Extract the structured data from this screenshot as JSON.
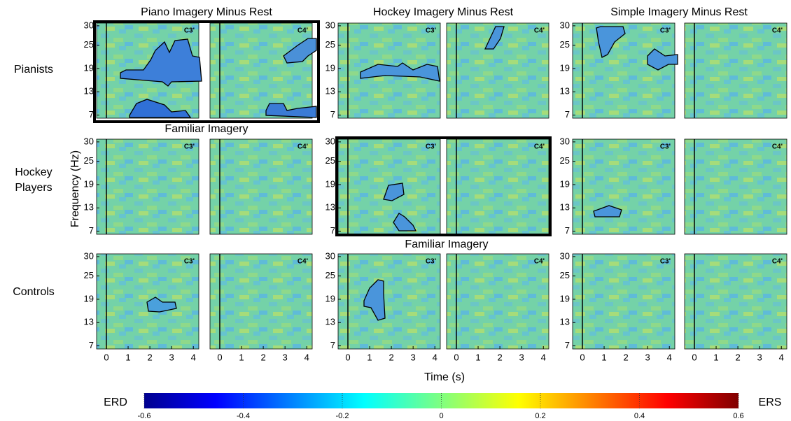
{
  "chart_data": {
    "type": "tf-grid",
    "columns": [
      "Piano Imagery Minus Rest",
      "Hockey Imagery Minus Rest",
      "Simple Imagery Minus Rest"
    ],
    "rows": [
      [
        "Pianists"
      ],
      [
        "Hockey",
        "Players"
      ],
      [
        "Controls"
      ]
    ],
    "electrodes": [
      "C3'",
      "C4'"
    ],
    "annotations": [
      "Familiar Imagery",
      "Familiar Imagery"
    ],
    "xlabel": "Time (s)",
    "ylabel": "Frequency (Hz)",
    "xlim": [
      -0.45,
      4.25
    ],
    "xticks": [
      0,
      1,
      2,
      3,
      4
    ],
    "ylim": [
      6.2,
      30.7
    ],
    "yticks": [
      7,
      13,
      19,
      25,
      30
    ],
    "colorbar": {
      "lim": [
        -0.6,
        0.6
      ],
      "ticks": [
        -0.6,
        -0.4,
        -0.2,
        0,
        0.2,
        0.4,
        0.6
      ],
      "left_label": "ERD",
      "right_label": "ERS"
    }
  }
}
